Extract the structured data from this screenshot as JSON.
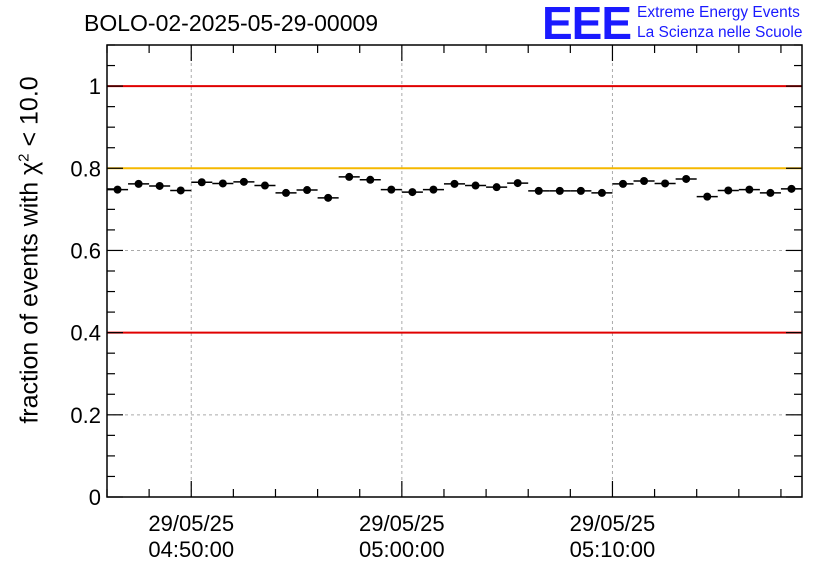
{
  "title": "BOLO-02-2025-05-29-00009",
  "logo": {
    "mark": "EEE",
    "line1": "Extreme Energy Events",
    "line2": "La Scienza nelle Scuole",
    "color": "#1a1aff"
  },
  "ylabel": {
    "prefix": "fraction of events with ",
    "chi": "χ",
    "exp": "2",
    "suffix": " < 10.0"
  },
  "chart_data": {
    "type": "scatter",
    "title": "BOLO-02-2025-05-29-00009",
    "xlabel": "",
    "ylabel": "fraction of events with χ² < 10.0",
    "xlim_minutes": [
      0,
      33
    ],
    "ylim": [
      0,
      1.1
    ],
    "y_ticks": [
      0,
      0.2,
      0.4,
      0.6,
      0.8,
      1
    ],
    "y_tick_labels": [
      "0",
      "0.2",
      "0.4",
      "0.6",
      "0.8",
      "1"
    ],
    "x_ticks": [
      {
        "minute": 4,
        "date": "29/05/25",
        "time": "04:50:00"
      },
      {
        "minute": 14,
        "date": "29/05/25",
        "time": "05:00:00"
      },
      {
        "minute": 24,
        "date": "29/05/25",
        "time": "05:10:00"
      }
    ],
    "grid": true,
    "reference_lines": [
      {
        "y": 1.0,
        "color": "#e00000"
      },
      {
        "y": 0.8,
        "color": "#f5b800"
      },
      {
        "y": 0.4,
        "color": "#e00000"
      }
    ],
    "series": [
      {
        "name": "fraction",
        "x_minutes": [
          0.5,
          1.5,
          2.5,
          3.5,
          4.5,
          5.5,
          6.5,
          7.5,
          8.5,
          9.5,
          10.5,
          11.5,
          12.5,
          13.5,
          14.5,
          15.5,
          16.5,
          17.5,
          18.5,
          19.5,
          20.5,
          21.5,
          22.5,
          23.5,
          24.5,
          25.5,
          26.5,
          27.5,
          28.5,
          29.5,
          30.5,
          31.5,
          32.5
        ],
        "values": [
          0.748,
          0.762,
          0.757,
          0.746,
          0.766,
          0.763,
          0.767,
          0.758,
          0.74,
          0.747,
          0.728,
          0.779,
          0.772,
          0.748,
          0.742,
          0.748,
          0.762,
          0.758,
          0.754,
          0.764,
          0.745,
          0.745,
          0.745,
          0.74,
          0.762,
          0.769,
          0.763,
          0.774,
          0.731,
          0.746,
          0.748,
          0.74,
          0.75
        ],
        "xerr_minutes": 0.5,
        "yerr": 0.006
      }
    ]
  }
}
